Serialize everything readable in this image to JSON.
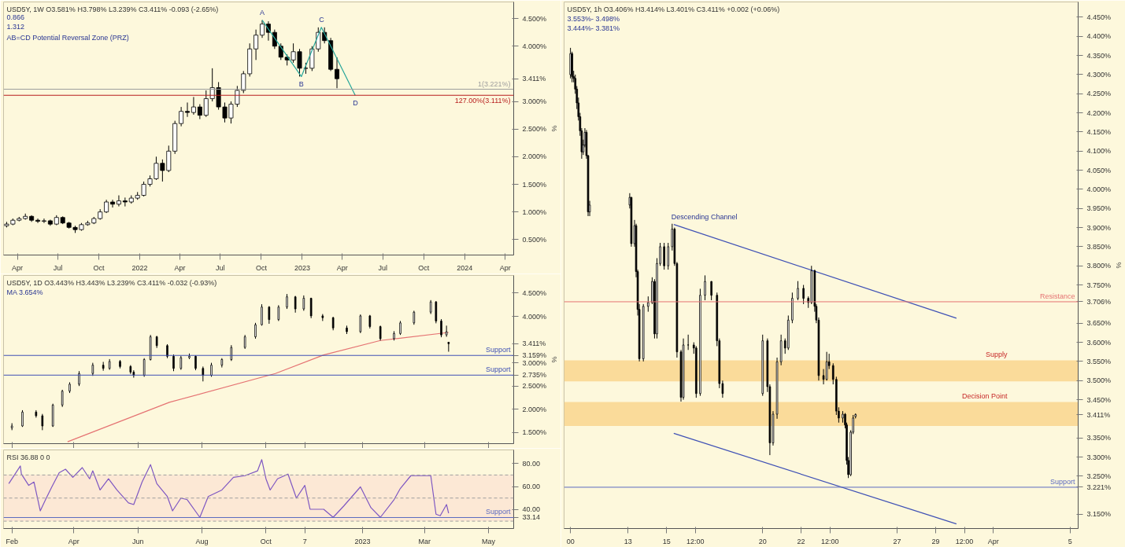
{
  "chart_data": [
    {
      "type": "candlestick",
      "title": "USD5Y, 1W O3.581% H3.798% L3.239% C3.411% -0.093 (-2.65%)",
      "ylabel": "%",
      "xlim": [
        "2021-03-01",
        "2024-04-20"
      ],
      "ylim": [
        0.22,
        4.8
      ],
      "xticks": [
        {
          "value": "2021-04-01",
          "label": "Apr"
        },
        {
          "value": "2021-07-01",
          "label": "Jul"
        },
        {
          "value": "2021-10-01",
          "label": "Oct"
        },
        {
          "value": "2022-01-01",
          "label": "2022"
        },
        {
          "value": "2022-04-01",
          "label": "Apr"
        },
        {
          "value": "2022-07-01",
          "label": "Jul"
        },
        {
          "value": "2022-10-01",
          "label": "Oct"
        },
        {
          "value": "2023-01-01",
          "label": "2023"
        },
        {
          "value": "2023-04-01",
          "label": "Apr"
        },
        {
          "value": "2023-07-01",
          "label": "Jul"
        },
        {
          "value": "2023-10-01",
          "label": "Oct"
        },
        {
          "value": "2024-01-01",
          "label": "2024"
        },
        {
          "value": "2024-04-01",
          "label": "Apr"
        }
      ],
      "yticks": [
        {
          "value": 0.5,
          "label": "0.500%"
        },
        {
          "value": 1.0,
          "label": "1.000%"
        },
        {
          "value": 1.5,
          "label": "1.500%"
        },
        {
          "value": 2.0,
          "label": "2.000%"
        },
        {
          "value": 2.5,
          "label": "2.500%"
        },
        {
          "value": 3.0,
          "label": "3.000%"
        },
        {
          "value": 3.411,
          "label": "3.411%"
        },
        {
          "value": 4.0,
          "label": "4.000%"
        },
        {
          "value": 4.5,
          "label": "4.500%"
        }
      ],
      "series": [
        {
          "color": "#000000",
          "x": [
            "2021-03-08",
            "2021-03-22",
            "2021-04-05",
            "2021-04-19",
            "2021-05-03",
            "2021-05-17",
            "2021-05-31",
            "2021-06-14",
            "2021-06-28",
            "2021-07-12",
            "2021-07-26",
            "2021-08-09",
            "2021-08-23",
            "2021-09-06",
            "2021-09-20",
            "2021-10-04",
            "2021-10-18",
            "2021-11-01",
            "2021-11-15",
            "2021-11-29",
            "2021-12-13",
            "2021-12-27",
            "2022-01-10",
            "2022-01-24",
            "2022-02-07",
            "2022-02-21",
            "2022-03-07",
            "2022-03-21",
            "2022-04-04",
            "2022-04-18",
            "2022-05-02",
            "2022-05-16",
            "2022-05-30",
            "2022-06-13",
            "2022-06-27",
            "2022-07-11",
            "2022-07-25",
            "2022-08-08",
            "2022-08-22",
            "2022-09-05",
            "2022-09-19",
            "2022-10-03",
            "2022-10-17",
            "2022-10-31",
            "2022-11-14",
            "2022-11-28",
            "2022-12-12",
            "2022-12-26",
            "2023-01-09",
            "2023-01-23",
            "2023-02-06",
            "2023-02-20",
            "2023-03-06",
            "2023-03-20"
          ],
          "ohlc": [
            [
              0.75,
              0.82,
              0.72,
              0.78
            ],
            [
              0.78,
              0.88,
              0.76,
              0.85
            ],
            [
              0.85,
              0.91,
              0.83,
              0.88
            ],
            [
              0.88,
              0.97,
              0.86,
              0.92
            ],
            [
              0.92,
              0.94,
              0.82,
              0.85
            ],
            [
              0.85,
              0.88,
              0.8,
              0.83
            ],
            [
              0.83,
              0.88,
              0.8,
              0.84
            ],
            [
              0.84,
              0.86,
              0.75,
              0.78
            ],
            [
              0.78,
              0.94,
              0.76,
              0.9
            ],
            [
              0.9,
              0.92,
              0.78,
              0.8
            ],
            [
              0.8,
              0.82,
              0.7,
              0.72
            ],
            [
              0.72,
              0.75,
              0.62,
              0.68
            ],
            [
              0.68,
              0.8,
              0.66,
              0.77
            ],
            [
              0.77,
              0.84,
              0.75,
              0.8
            ],
            [
              0.8,
              0.91,
              0.78,
              0.88
            ],
            [
              0.88,
              1.05,
              0.86,
              1.0
            ],
            [
              1.0,
              1.22,
              0.98,
              1.18
            ],
            [
              1.18,
              1.22,
              1.08,
              1.14
            ],
            [
              1.14,
              1.3,
              1.1,
              1.2
            ],
            [
              1.2,
              1.26,
              1.1,
              1.18
            ],
            [
              1.18,
              1.3,
              1.15,
              1.25
            ],
            [
              1.25,
              1.36,
              1.22,
              1.3
            ],
            [
              1.3,
              1.55,
              1.28,
              1.5
            ],
            [
              1.5,
              1.66,
              1.46,
              1.6
            ],
            [
              1.6,
              2.0,
              1.58,
              1.88
            ],
            [
              1.88,
              1.95,
              1.55,
              1.75
            ],
            [
              1.75,
              2.2,
              1.72,
              2.1
            ],
            [
              2.1,
              2.65,
              2.05,
              2.6
            ],
            [
              2.6,
              2.9,
              2.55,
              2.82
            ],
            [
              2.82,
              2.98,
              2.72,
              2.8
            ],
            [
              2.8,
              3.08,
              2.76,
              2.9
            ],
            [
              2.9,
              2.95,
              2.68,
              2.75
            ],
            [
              2.75,
              3.2,
              2.72,
              3.05
            ],
            [
              3.05,
              3.6,
              3.0,
              3.25
            ],
            [
              3.25,
              3.35,
              2.85,
              2.9
            ],
            [
              2.9,
              2.98,
              2.62,
              2.7
            ],
            [
              2.7,
              3.0,
              2.6,
              2.95
            ],
            [
              2.95,
              3.28,
              2.9,
              3.2
            ],
            [
              3.2,
              3.55,
              3.15,
              3.5
            ],
            [
              3.5,
              4.05,
              3.45,
              3.95
            ],
            [
              3.95,
              4.3,
              3.75,
              4.2
            ],
            [
              4.2,
              4.47,
              4.15,
              4.4
            ],
            [
              4.4,
              4.45,
              4.1,
              4.25
            ],
            [
              4.25,
              4.3,
              3.95,
              4.0
            ],
            [
              4.0,
              4.05,
              3.75,
              3.8
            ],
            [
              3.8,
              3.85,
              3.65,
              3.75
            ],
            [
              3.75,
              4.05,
              3.7,
              3.9
            ],
            [
              3.9,
              3.95,
              3.45,
              3.6
            ],
            [
              3.6,
              3.7,
              3.5,
              3.6
            ],
            [
              3.6,
              4.0,
              3.55,
              3.95
            ],
            [
              3.95,
              4.34,
              3.9,
              4.25
            ],
            [
              4.25,
              4.34,
              4.05,
              4.1
            ],
            [
              4.1,
              4.15,
              3.55,
              3.581
            ],
            [
              3.581,
              3.798,
              3.239,
              3.411
            ]
          ]
        },
        {
          "type": "line",
          "color": "#26a69a",
          "x": [
            "2022-10-03",
            "2022-12-30",
            "2023-02-13",
            "2023-04-30"
          ],
          "values": [
            4.47,
            3.45,
            4.34,
            3.111
          ]
        }
      ],
      "ref_lines": [
        {
          "axis": "y",
          "value": 3.221,
          "label": "1(3.221%)",
          "color": "#9e9e9e"
        },
        {
          "axis": "y",
          "value": 3.111,
          "label": "127.00%(3.111%)",
          "color": "#b71c1c"
        }
      ],
      "annotations": [
        {
          "text": "A",
          "x": "2022-10-03",
          "y": 4.47
        },
        {
          "text": "B",
          "x": "2022-12-30",
          "y": 3.45
        },
        {
          "text": "C",
          "x": "2023-02-13",
          "y": 4.34
        },
        {
          "text": "D",
          "x": "2023-04-30",
          "y": 3.111
        },
        "0.866",
        "1.312",
        "AB=CD Potential Reversal Zone (PRZ)"
      ]
    },
    {
      "type": "candlestick",
      "title": "USD5Y, 1D O3.443% H3.443% L3.239% C3.411% -0.032 (-0.93%)",
      "ylabel": "%",
      "xlim": [
        "2022-01-24",
        "2023-05-25"
      ],
      "ylim": [
        1.26,
        4.88
      ],
      "tick_labels": "y",
      "xticks": [
        {
          "value": "2022-02-01",
          "label": null
        },
        {
          "value": "2022-04-01",
          "label": null
        },
        {
          "value": "2022-06-01",
          "label": null
        },
        {
          "value": "2022-08-01",
          "label": null
        },
        {
          "value": "2022-10-01",
          "label": null
        },
        {
          "value": "2022-11-07",
          "label": null
        },
        {
          "value": "2023-01-01",
          "label": null
        },
        {
          "value": "2023-03-01",
          "label": null
        },
        {
          "value": "2023-05-01",
          "label": null
        }
      ],
      "yticks": [
        {
          "value": 1.5,
          "label": "1.500%"
        },
        {
          "value": 2.0,
          "label": "2.000%"
        },
        {
          "value": 2.5,
          "label": "2.500%"
        },
        {
          "value": 2.735,
          "label": "2.735%"
        },
        {
          "value": 3.0,
          "label": "3.000%"
        },
        {
          "value": 3.159,
          "label": "3.159%"
        },
        {
          "value": 3.411,
          "label": "3.411%"
        },
        {
          "value": 4.0,
          "label": "4.000%"
        },
        {
          "value": 4.5,
          "label": "4.500%"
        }
      ],
      "series": [
        {
          "type": "line",
          "color": "#e57373",
          "x": [
            "2022-03-26",
            "2022-07-01",
            "2022-10-10",
            "2022-11-25",
            "2023-01-18",
            "2023-03-24"
          ],
          "values": [
            1.3,
            2.15,
            2.77,
            3.17,
            3.48,
            3.654
          ]
        },
        {
          "color": "#000000",
          "x": [
            "2022-02-01",
            "2022-02-11",
            "2022-02-24",
            "2022-03-02",
            "2022-03-12",
            "2022-03-21",
            "2022-03-28",
            "2022-04-06",
            "2022-04-19",
            "2022-04-29",
            "2022-05-05",
            "2022-05-15",
            "2022-05-25",
            "2022-05-28",
            "2022-06-07",
            "2022-06-13",
            "2022-06-19",
            "2022-06-29",
            "2022-07-05",
            "2022-07-12",
            "2022-07-20",
            "2022-07-26",
            "2022-08-02",
            "2022-08-10",
            "2022-08-20",
            "2022-08-29",
            "2022-09-11",
            "2022-09-21",
            "2022-09-27",
            "2022-10-04",
            "2022-10-13",
            "2022-10-21",
            "2022-10-29",
            "2022-11-06",
            "2022-11-13",
            "2022-11-24",
            "2022-12-04",
            "2022-12-17",
            "2022-12-30",
            "2023-01-08",
            "2023-01-18",
            "2023-01-31",
            "2023-02-06",
            "2023-02-19",
            "2023-03-07",
            "2023-03-12",
            "2023-03-17",
            "2023-03-22",
            "2023-03-24"
          ],
          "ohlc": [
            [
              1.6,
              1.7,
              1.55,
              1.64
            ],
            [
              1.64,
              1.98,
              1.62,
              1.94
            ],
            [
              1.94,
              1.98,
              1.82,
              1.86
            ],
            [
              1.86,
              1.9,
              1.55,
              1.64
            ],
            [
              1.64,
              2.12,
              1.62,
              2.09
            ],
            [
              2.09,
              2.42,
              2.05,
              2.39
            ],
            [
              2.39,
              2.58,
              2.35,
              2.54
            ],
            [
              2.54,
              2.82,
              2.5,
              2.77
            ],
            [
              2.77,
              3.0,
              2.72,
              2.95
            ],
            [
              2.95,
              3.02,
              2.83,
              2.88
            ],
            [
              2.88,
              3.08,
              2.85,
              3.03
            ],
            [
              3.03,
              3.06,
              2.88,
              2.92
            ],
            [
              2.92,
              2.95,
              2.76,
              2.8
            ],
            [
              2.8,
              2.84,
              2.68,
              2.73
            ],
            [
              2.73,
              3.1,
              2.7,
              3.07
            ],
            [
              3.07,
              3.6,
              3.05,
              3.56
            ],
            [
              3.56,
              3.58,
              3.32,
              3.37
            ],
            [
              3.37,
              3.4,
              3.1,
              3.14
            ],
            [
              3.14,
              3.18,
              2.82,
              2.88
            ],
            [
              2.88,
              3.15,
              2.85,
              3.11
            ],
            [
              3.11,
              3.2,
              3.08,
              3.14
            ],
            [
              3.14,
              3.16,
              2.84,
              2.88
            ],
            [
              2.88,
              2.92,
              2.6,
              2.73
            ],
            [
              2.73,
              3.0,
              2.7,
              2.95
            ],
            [
              2.95,
              3.1,
              2.9,
              3.07
            ],
            [
              3.07,
              3.38,
              3.04,
              3.33
            ],
            [
              3.33,
              3.6,
              3.3,
              3.56
            ],
            [
              3.56,
              3.86,
              3.52,
              3.82
            ],
            [
              3.82,
              4.26,
              3.8,
              4.2
            ],
            [
              4.2,
              4.22,
              3.84,
              3.93
            ],
            [
              3.93,
              4.24,
              3.9,
              4.2
            ],
            [
              4.2,
              4.48,
              4.16,
              4.42
            ],
            [
              4.42,
              4.44,
              4.08,
              4.16
            ],
            [
              4.16,
              4.45,
              4.12,
              4.39
            ],
            [
              4.39,
              4.4,
              3.96,
              4.01
            ],
            [
              4.01,
              4.05,
              3.9,
              3.97
            ],
            [
              3.97,
              3.99,
              3.7,
              3.75
            ],
            [
              3.75,
              3.8,
              3.62,
              3.67
            ],
            [
              3.67,
              4.04,
              3.64,
              4.01
            ],
            [
              4.01,
              4.03,
              3.74,
              3.78
            ],
            [
              3.78,
              3.8,
              3.48,
              3.52
            ],
            [
              3.52,
              3.68,
              3.48,
              3.63
            ],
            [
              3.63,
              3.9,
              3.6,
              3.86
            ],
            [
              3.86,
              4.12,
              3.82,
              4.09
            ],
            [
              4.09,
              4.35,
              4.05,
              4.31
            ],
            [
              4.31,
              4.33,
              3.85,
              3.9
            ],
            [
              3.9,
              3.94,
              3.55,
              3.6
            ],
            [
              3.6,
              3.8,
              3.56,
              3.67
            ],
            [
              3.443,
              3.443,
              3.239,
              3.411
            ]
          ]
        }
      ],
      "ref_lines": [
        {
          "axis": "y",
          "value": 3.159,
          "label": "Support",
          "color": "#3f51b5"
        },
        {
          "axis": "y",
          "value": 2.735,
          "label": "Support",
          "color": "#3f51b5"
        }
      ],
      "annotations": [
        "MA 3.654%"
      ]
    },
    {
      "type": "line",
      "title": "RSI 36.88 0 0",
      "xlim": [
        "2022-01-24",
        "2023-05-25"
      ],
      "ylim": [
        23.6,
        91.7
      ],
      "xticks": [
        {
          "value": "2022-02-01",
          "label": "Feb"
        },
        {
          "value": "2022-04-01",
          "label": "Apr"
        },
        {
          "value": "2022-06-01",
          "label": "Jun"
        },
        {
          "value": "2022-08-01",
          "label": "Aug"
        },
        {
          "value": "2022-10-01",
          "label": "Oct"
        },
        {
          "value": "2022-11-07",
          "label": "7"
        },
        {
          "value": "2023-01-01",
          "label": "2023"
        },
        {
          "value": "2023-03-01",
          "label": "Mar"
        },
        {
          "value": "2023-05-01",
          "label": "May"
        }
      ],
      "yticks": [
        {
          "value": 33.14,
          "label": "33.14"
        },
        {
          "value": 40,
          "label": "40.00"
        },
        {
          "value": 60,
          "label": "60.00"
        },
        {
          "value": 80,
          "label": "80.00"
        }
      ],
      "series": [
        {
          "color": "#7e57c2",
          "x": [
            "2022-01-29",
            "2022-02-09",
            "2022-02-10",
            "2022-02-17",
            "2022-02-22",
            "2022-02-28",
            "2022-03-05",
            "2022-03-11",
            "2022-03-18",
            "2022-03-24",
            "2022-03-31",
            "2022-04-09",
            "2022-04-16",
            "2022-04-19",
            "2022-04-26",
            "2022-05-04",
            "2022-05-12",
            "2022-05-23",
            "2022-05-28",
            "2022-06-05",
            "2022-06-13",
            "2022-06-19",
            "2022-06-29",
            "2022-07-04",
            "2022-07-12",
            "2022-07-18",
            "2022-07-30",
            "2022-08-07",
            "2022-08-20",
            "2022-08-31",
            "2022-09-11",
            "2022-09-23",
            "2022-09-27",
            "2022-10-01",
            "2022-10-05",
            "2022-10-12",
            "2022-10-22",
            "2022-10-30",
            "2022-11-07",
            "2022-11-12",
            "2022-11-25",
            "2022-12-04",
            "2022-12-14",
            "2022-12-30",
            "2023-01-09",
            "2023-01-18",
            "2023-01-31",
            "2023-02-06",
            "2023-02-16",
            "2023-03-07",
            "2023-03-12",
            "2023-03-16",
            "2023-03-22",
            "2023-03-24"
          ],
          "values": [
            62.5,
            77.8,
            70.8,
            61,
            63.9,
            38.9,
            48.6,
            59.7,
            72,
            75,
            68,
            76.4,
            66.7,
            73.6,
            57,
            66.7,
            57,
            45.8,
            44.4,
            63.9,
            79,
            62.5,
            51.4,
            38.9,
            50,
            48.6,
            33.3,
            51.4,
            57,
            68,
            69.4,
            73.6,
            83.3,
            66.7,
            57,
            66.7,
            70.8,
            50,
            61,
            40.3,
            40.3,
            33.3,
            43,
            59.7,
            41.7,
            33.3,
            48.6,
            58.3,
            69.4,
            69.4,
            36,
            34.7,
            44.4,
            36.88
          ]
        }
      ],
      "bands": [
        {
          "axis": "y",
          "from": 30,
          "to": 70,
          "color": "#fbe3d3"
        }
      ],
      "ref_lines": [
        {
          "axis": "y",
          "value": 70,
          "color": "#9e9e9e",
          "line_style": "dashed"
        },
        {
          "axis": "y",
          "value": 50,
          "color": "#9e9e9e",
          "line_style": "dashed"
        },
        {
          "axis": "y",
          "value": 30,
          "color": "#9e9e9e",
          "line_style": "dashed"
        },
        {
          "axis": "y",
          "value": 33.14,
          "label": "Support",
          "color": "#5c6bc0"
        }
      ]
    },
    {
      "type": "candlestick",
      "title": "USD5Y, 1h O3.406% H3.414% L3.401% C3.411% +0.002 (+0.06%)",
      "ylabel": "%",
      "xlim": [
        "2023-03-09T16:00",
        "2023-04-05T10:00"
      ],
      "ylim": [
        3.113,
        4.49
      ],
      "xticks": [
        {
          "value": "2023-03-10T00:00",
          "label": "00"
        },
        {
          "value": "2023-03-13",
          "label": "13"
        },
        {
          "value": "2023-03-15",
          "label": "15"
        },
        {
          "value": "2023-03-16T12:00",
          "label": "12:00"
        },
        {
          "value": "2023-03-20",
          "label": "20"
        },
        {
          "value": "2023-03-22",
          "label": "22"
        },
        {
          "value": "2023-03-23T12:00",
          "label": "12:00"
        },
        {
          "value": "2023-03-27",
          "label": "27"
        },
        {
          "value": "2023-03-29",
          "label": "29"
        },
        {
          "value": "2023-03-30T12:00",
          "label": "12:00"
        },
        {
          "value": "2023-04-01",
          "label": "Apr"
        },
        {
          "value": "2023-04-05",
          "label": "5"
        }
      ],
      "yticks": [
        {
          "value": 3.15,
          "label": "3.150%"
        },
        {
          "value": 3.221,
          "label": "3.221%"
        },
        {
          "value": 3.25,
          "label": "3.250%"
        },
        {
          "value": 3.3,
          "label": "3.300%"
        },
        {
          "value": 3.35,
          "label": "3.350%"
        },
        {
          "value": 3.411,
          "label": "3.411%"
        },
        {
          "value": 3.45,
          "label": "3.450%"
        },
        {
          "value": 3.5,
          "label": "3.500%"
        },
        {
          "value": 3.55,
          "label": "3.550%"
        },
        {
          "value": 3.6,
          "label": "3.600%"
        },
        {
          "value": 3.65,
          "label": "3.650%"
        },
        {
          "value": 3.706,
          "label": "3.706%"
        },
        {
          "value": 3.75,
          "label": "3.750%"
        },
        {
          "value": 3.8,
          "label": "3.800%"
        },
        {
          "value": 3.85,
          "label": "3.850%"
        },
        {
          "value": 3.9,
          "label": "3.900%"
        },
        {
          "value": 3.95,
          "label": "3.950%"
        },
        {
          "value": 4.0,
          "label": "4.000%"
        },
        {
          "value": 4.05,
          "label": "4.050%"
        },
        {
          "value": 4.1,
          "label": "4.100%"
        },
        {
          "value": 4.15,
          "label": "4.150%"
        },
        {
          "value": 4.2,
          "label": "4.200%"
        },
        {
          "value": 4.25,
          "label": "4.250%"
        },
        {
          "value": 4.3,
          "label": "4.300%"
        },
        {
          "value": 4.35,
          "label": "4.350%"
        },
        {
          "value": 4.4,
          "label": "4.400%"
        },
        {
          "value": 4.45,
          "label": "4.450%"
        }
      ],
      "series": [
        {
          "type": "line",
          "color": "#3f51b5",
          "x": [
            "2023-03-15T09:00",
            "2023-03-30T02:00"
          ],
          "values": [
            3.908,
            3.663
          ]
        },
        {
          "type": "line",
          "color": "#3f51b5",
          "x": [
            "2023-03-15T09:00",
            "2023-03-30T02:00"
          ],
          "values": [
            3.362,
            3.125
          ]
        },
        {
          "color": "#000000",
          "x": [
            "2023-03-10T00:00",
            "2023-03-10T02:00",
            "2023-03-10T04:00",
            "2023-03-10T06:00",
            "2023-03-10T08:00",
            "2023-03-10T10:00",
            "2023-03-10T12:00",
            "2023-03-10T14:00",
            "2023-03-10T16:00",
            "2023-03-10T18:00",
            "2023-03-10T20:00",
            "2023-03-10T22:00",
            "2023-03-11T00:00",
            "2023-03-13T02:00",
            "2023-03-13T04:00",
            "2023-03-13T08:00",
            "2023-03-13T10:00",
            "2023-03-13T12:00",
            "2023-03-13T14:00",
            "2023-03-13T19:00",
            "2023-03-14T01:00",
            "2023-03-14T06:00",
            "2023-03-14T09:00",
            "2023-03-14T12:00",
            "2023-03-14T16:00",
            "2023-03-14T21:00",
            "2023-03-15T02:00",
            "2023-03-15T07:00",
            "2023-03-15T10:00",
            "2023-03-15T13:00",
            "2023-03-15T18:00",
            "2023-03-15T21:00",
            "2023-03-16T03:00",
            "2023-03-16T10:00",
            "2023-03-16T13:00",
            "2023-03-16T18:00",
            "2023-03-17T00:00",
            "2023-03-17T08:00",
            "2023-03-17T15:00",
            "2023-03-17T18:00",
            "2023-03-17T22:00",
            "2023-03-20T00:00",
            "2023-03-20T06:00",
            "2023-03-20T09:00",
            "2023-03-20T13:00",
            "2023-03-20T18:00",
            "2023-03-20T23:00",
            "2023-03-21T04:00",
            "2023-03-21T08:00",
            "2023-03-21T13:00",
            "2023-03-21T20:00",
            "2023-03-22T03:00",
            "2023-03-22T09:00",
            "2023-03-22T13:00",
            "2023-03-22T17:00",
            "2023-03-22T19:00",
            "2023-03-22T22:00",
            "2023-03-23T04:00",
            "2023-03-23T08:00",
            "2023-03-23T11:00",
            "2023-03-23T16:00",
            "2023-03-23T20:00",
            "2023-03-23T23:00",
            "2023-03-24T04:00",
            "2023-03-24T07:00",
            "2023-03-24T09:00",
            "2023-03-24T11:00",
            "2023-03-24T14:00",
            "2023-03-24T17:00",
            "2023-03-24T20:00"
          ],
          "ohlc": [
            [
              4.3,
              4.37,
              4.29,
              4.355
            ],
            [
              4.355,
              4.36,
              4.28,
              4.295
            ],
            [
              4.295,
              4.31,
              4.28,
              4.29
            ],
            [
              4.29,
              4.3,
              4.25,
              4.262
            ],
            [
              4.262,
              4.27,
              4.21,
              4.226
            ],
            [
              4.226,
              4.24,
              4.18,
              4.19
            ],
            [
              4.19,
              4.2,
              4.14,
              4.153
            ],
            [
              4.153,
              4.16,
              4.08,
              4.098
            ],
            [
              4.098,
              4.13,
              4.09,
              4.116
            ],
            [
              4.116,
              4.16,
              4.11,
              4.149
            ],
            [
              4.149,
              4.155,
              4.08,
              4.088
            ],
            [
              4.088,
              4.09,
              3.93,
              3.941
            ],
            [
              3.941,
              3.97,
              3.93,
              3.959
            ],
            [
              3.959,
              3.99,
              3.95,
              3.979
            ],
            [
              3.979,
              3.98,
              3.85,
              3.858
            ],
            [
              3.858,
              3.92,
              3.85,
              3.905
            ],
            [
              3.905,
              3.91,
              3.77,
              3.785
            ],
            [
              3.785,
              3.79,
              3.67,
              3.686
            ],
            [
              3.686,
              3.7,
              3.55,
              3.557
            ],
            [
              3.557,
              3.7,
              3.55,
              3.694
            ],
            [
              3.694,
              3.72,
              3.68,
              3.704
            ],
            [
              3.704,
              3.77,
              3.7,
              3.759
            ],
            [
              3.759,
              3.765,
              3.61,
              3.622
            ],
            [
              3.622,
              3.82,
              3.61,
              3.806
            ],
            [
              3.806,
              3.86,
              3.8,
              3.85
            ],
            [
              3.85,
              3.86,
              3.79,
              3.8
            ],
            [
              3.8,
              3.86,
              3.79,
              3.85
            ],
            [
              3.85,
              3.91,
              3.84,
              3.896
            ],
            [
              3.896,
              3.9,
              3.8,
              3.806
            ],
            [
              3.806,
              3.81,
              3.56,
              3.575
            ],
            [
              3.575,
              3.58,
              3.445,
              3.456
            ],
            [
              3.456,
              3.61,
              3.45,
              3.593
            ],
            [
              3.593,
              3.62,
              3.58,
              3.593
            ],
            [
              3.593,
              3.6,
              3.57,
              3.585
            ],
            [
              3.585,
              3.59,
              3.455,
              3.466
            ],
            [
              3.466,
              3.74,
              3.46,
              3.723
            ],
            [
              3.723,
              3.775,
              3.71,
              3.759
            ],
            [
              3.759,
              3.76,
              3.71,
              3.723
            ],
            [
              3.723,
              3.73,
              3.59,
              3.604
            ],
            [
              3.604,
              3.61,
              3.48,
              3.492
            ],
            [
              3.492,
              3.5,
              3.455,
              3.466
            ],
            [
              3.466,
              3.62,
              3.46,
              3.604
            ],
            [
              3.604,
              3.61,
              3.47,
              3.484
            ],
            [
              3.484,
              3.49,
              3.305,
              3.337
            ],
            [
              3.337,
              3.42,
              3.33,
              3.412
            ],
            [
              3.412,
              3.56,
              3.4,
              3.549
            ],
            [
              3.549,
              3.62,
              3.54,
              3.604
            ],
            [
              3.604,
              3.61,
              3.57,
              3.585
            ],
            [
              3.585,
              3.67,
              3.58,
              3.658
            ],
            [
              3.658,
              3.73,
              3.65,
              3.715
            ],
            [
              3.715,
              3.76,
              3.71,
              3.741
            ],
            [
              3.741,
              3.75,
              3.7,
              3.715
            ],
            [
              3.715,
              3.72,
              3.69,
              3.704
            ],
            [
              3.704,
              3.8,
              3.7,
              3.787
            ],
            [
              3.787,
              3.79,
              3.68,
              3.694
            ],
            [
              3.694,
              3.7,
              3.65,
              3.658
            ],
            [
              3.658,
              3.665,
              3.5,
              3.513
            ],
            [
              3.513,
              3.53,
              3.49,
              3.503
            ],
            [
              3.503,
              3.575,
              3.5,
              3.549
            ],
            [
              3.549,
              3.57,
              3.53,
              3.539
            ],
            [
              3.539,
              3.545,
              3.49,
              3.503
            ],
            [
              3.503,
              3.51,
              3.41,
              3.42
            ],
            [
              3.42,
              3.43,
              3.39,
              3.402
            ],
            [
              3.402,
              3.42,
              3.39,
              3.412
            ],
            [
              3.412,
              3.415,
              3.375,
              3.384
            ],
            [
              3.384,
              3.39,
              3.28,
              3.291
            ],
            [
              3.291,
              3.3,
              3.245,
              3.254
            ],
            [
              3.254,
              3.37,
              3.25,
              3.365
            ],
            [
              3.365,
              3.41,
              3.36,
              3.402
            ],
            [
              3.406,
              3.414,
              3.401,
              3.411
            ]
          ]
        }
      ],
      "bands": [
        {
          "axis": "y",
          "from": 3.498,
          "to": 3.553,
          "label": "Supply",
          "color": "#f9d38a"
        },
        {
          "axis": "y",
          "from": 3.381,
          "to": 3.444,
          "label": "Decision Point",
          "color": "#f9d38a"
        }
      ],
      "ref_lines": [
        {
          "axis": "y",
          "value": 3.706,
          "label": "Resistance",
          "color": "#e57373"
        },
        {
          "axis": "y",
          "value": 3.221,
          "label": "Support",
          "color": "#5c6bc0"
        }
      ],
      "annotations": [
        {
          "text": "Descending Channel",
          "x": "2023-03-15T09:00",
          "y": 3.908
        },
        "3.553%- 3.498%",
        "3.444%- 3.381%"
      ]
    }
  ]
}
